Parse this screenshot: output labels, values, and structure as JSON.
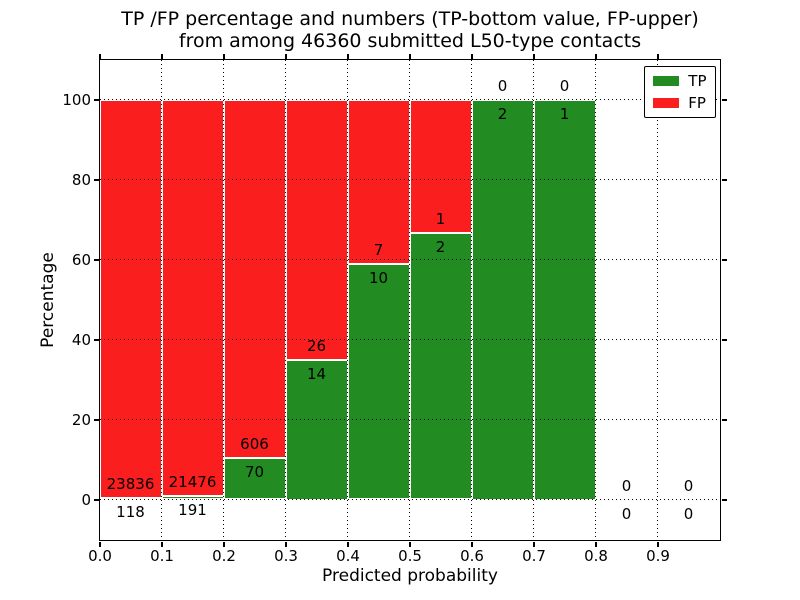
{
  "colors": {
    "tp": "#228b22",
    "fp": "#fa1e1e",
    "bar_edge": "#ffffff",
    "axis": "#000000",
    "grid": "#000000",
    "background": "#ffffff",
    "text": "#000000"
  },
  "chart_data": {
    "type": "bar",
    "stacked": true,
    "orientation": "vertical",
    "title_line1": "TP /FP percentage and numbers (TP-bottom value, FP-upper)",
    "title_line2": "from among 46360 submitted L50-type contacts",
    "xlabel": "Predicted probability",
    "ylabel": "Percentage",
    "total_contacts": 46360,
    "categories": [
      "0.0-0.1",
      "0.1-0.2",
      "0.2-0.3",
      "0.3-0.4",
      "0.4-0.5",
      "0.5-0.6",
      "0.6-0.7",
      "0.7-0.8",
      "0.8-0.9",
      "0.9-1.0"
    ],
    "bin_starts": [
      0.0,
      0.1,
      0.2,
      0.3,
      0.4,
      0.5,
      0.6,
      0.7,
      0.8,
      0.9
    ],
    "bin_width": 0.1,
    "series": [
      {
        "name": "TP",
        "color_key": "tp",
        "counts": [
          118,
          191,
          70,
          14,
          10,
          2,
          2,
          1,
          0,
          0
        ]
      },
      {
        "name": "FP",
        "color_key": "fp",
        "counts": [
          23836,
          21476,
          606,
          26,
          7,
          1,
          0,
          0,
          0,
          0
        ]
      }
    ],
    "value_mode": "percent_of_bin_total",
    "xlim": [
      0.0,
      1.0
    ],
    "ylim": [
      -10,
      110
    ],
    "xticks": [
      {
        "value": 0.0,
        "label": "0.0"
      },
      {
        "value": 0.1,
        "label": "0.1"
      },
      {
        "value": 0.2,
        "label": "0.2"
      },
      {
        "value": 0.3,
        "label": "0.3"
      },
      {
        "value": 0.4,
        "label": "0.4"
      },
      {
        "value": 0.5,
        "label": "0.5"
      },
      {
        "value": 0.6,
        "label": "0.6"
      },
      {
        "value": 0.7,
        "label": "0.7"
      },
      {
        "value": 0.8,
        "label": "0.8"
      },
      {
        "value": 0.9,
        "label": "0.9"
      }
    ],
    "yticks": [
      {
        "value": 0,
        "label": "0"
      },
      {
        "value": 20,
        "label": "20"
      },
      {
        "value": 40,
        "label": "40"
      },
      {
        "value": 60,
        "label": "60"
      },
      {
        "value": 80,
        "label": "80"
      },
      {
        "value": 100,
        "label": "100"
      }
    ],
    "grid": true,
    "grid_style": "dotted",
    "legend": {
      "position": "upper right",
      "entries": [
        "TP",
        "FP"
      ]
    }
  }
}
